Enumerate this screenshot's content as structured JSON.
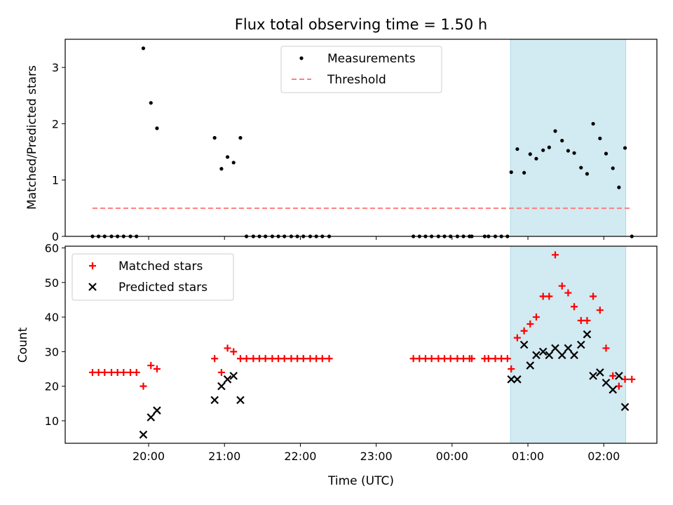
{
  "chart_data": {
    "title": "Flux total observing time = 1.50 h",
    "type": "scatter",
    "x_unit": "UTC time (hours; values past 24 are the next day)",
    "xlabel": "Time (UTC)",
    "xlim": [
      18.9,
      26.7
    ],
    "x_ticks": [
      {
        "value": 20,
        "label": "20:00"
      },
      {
        "value": 21,
        "label": "21:00"
      },
      {
        "value": 22,
        "label": "22:00"
      },
      {
        "value": 23,
        "label": "23:00"
      },
      {
        "value": 24,
        "label": "00:00"
      },
      {
        "value": 25,
        "label": "01:00"
      },
      {
        "value": 26,
        "label": "02:00"
      }
    ],
    "shaded_interval": [
      24.77,
      26.29
    ],
    "shaded_color": "#add8e6",
    "panels": [
      {
        "ylabel": "Matched/Predicted stars",
        "ylim": [
          0,
          3.5
        ],
        "y_ticks": [
          0,
          1,
          2,
          3
        ],
        "legend_position": "upper-center",
        "series": [
          {
            "name": "Measurements",
            "marker": "dot",
            "color": "#000000",
            "x": [
              19.26,
              19.34,
              19.42,
              19.51,
              19.59,
              19.67,
              19.76,
              19.84,
              19.93,
              20.03,
              20.11,
              20.87,
              20.96,
              21.04,
              21.12,
              21.21,
              21.29,
              21.38,
              21.46,
              21.54,
              21.63,
              21.71,
              21.79,
              21.88,
              21.96,
              22.04,
              22.13,
              22.21,
              22.29,
              22.38,
              23.49,
              23.57,
              23.65,
              23.73,
              23.82,
              23.9,
              23.98,
              24.07,
              24.15,
              24.23,
              24.26,
              24.43,
              24.48,
              24.57,
              24.65,
              24.73,
              24.78,
              24.86,
              24.95,
              25.03,
              25.11,
              25.2,
              25.28,
              25.36,
              25.45,
              25.53,
              25.61,
              25.7,
              25.78,
              25.86,
              25.95,
              26.03,
              26.12,
              26.2,
              26.28,
              26.37
            ],
            "y": [
              0,
              0,
              0,
              0,
              0,
              0,
              0,
              0,
              3.34,
              2.37,
              1.92,
              1.75,
              1.2,
              1.41,
              1.31,
              1.75,
              0,
              0,
              0,
              0,
              0,
              0,
              0,
              0,
              0,
              0,
              0,
              0,
              0,
              0,
              0,
              0,
              0,
              0,
              0,
              0,
              0,
              0,
              0,
              0,
              0,
              0,
              0,
              0,
              0,
              0,
              1.14,
              1.55,
              1.13,
              1.46,
              1.38,
              1.53,
              1.58,
              1.87,
              1.7,
              1.52,
              1.48,
              1.22,
              1.11,
              2.0,
              1.74,
              1.47,
              1.21,
              0.87,
              1.57,
              0
            ]
          },
          {
            "name": "Threshold",
            "marker": "dashed-line",
            "color": "#ff7f7f",
            "x": [
              19.26,
              26.37
            ],
            "y": [
              0.5,
              0.5
            ]
          }
        ]
      },
      {
        "ylabel": "Count",
        "ylim": [
          3.5,
          60.5
        ],
        "y_ticks": [
          10,
          20,
          30,
          40,
          50,
          60
        ],
        "legend_position": "upper-left",
        "series": [
          {
            "name": "Matched stars",
            "marker": "plus",
            "color": "#ff0000",
            "x": [
              19.26,
              19.34,
              19.42,
              19.51,
              19.59,
              19.67,
              19.76,
              19.84,
              19.93,
              20.03,
              20.11,
              20.87,
              20.96,
              21.04,
              21.12,
              21.21,
              21.29,
              21.38,
              21.46,
              21.54,
              21.63,
              21.71,
              21.79,
              21.88,
              21.96,
              22.04,
              22.13,
              22.21,
              22.29,
              22.38,
              23.49,
              23.57,
              23.65,
              23.73,
              23.82,
              23.9,
              23.98,
              24.07,
              24.15,
              24.23,
              24.26,
              24.43,
              24.48,
              24.57,
              24.65,
              24.73,
              24.78,
              24.86,
              24.95,
              25.03,
              25.11,
              25.2,
              25.28,
              25.36,
              25.45,
              25.53,
              25.61,
              25.7,
              25.78,
              25.86,
              25.95,
              26.03,
              26.12,
              26.2,
              26.28,
              26.37
            ],
            "y": [
              24,
              24,
              24,
              24,
              24,
              24,
              24,
              24,
              20,
              26,
              25,
              28,
              24,
              31,
              30,
              28,
              28,
              28,
              28,
              28,
              28,
              28,
              28,
              28,
              28,
              28,
              28,
              28,
              28,
              28,
              28,
              28,
              28,
              28,
              28,
              28,
              28,
              28,
              28,
              28,
              28,
              28,
              28,
              28,
              28,
              28,
              25,
              34,
              36,
              38,
              40,
              46,
              46,
              58,
              49,
              47,
              43,
              39,
              39,
              46,
              42,
              31,
              23,
              20,
              22,
              22
            ]
          },
          {
            "name": "Predicted stars",
            "marker": "x",
            "color": "#000000",
            "x": [
              19.93,
              20.03,
              20.11,
              20.87,
              20.96,
              21.04,
              21.12,
              21.21,
              24.78,
              24.86,
              24.95,
              25.03,
              25.11,
              25.2,
              25.28,
              25.36,
              25.45,
              25.53,
              25.61,
              25.7,
              25.78,
              25.86,
              25.95,
              26.03,
              26.12,
              26.2,
              26.28
            ],
            "y": [
              6,
              11,
              13,
              16,
              20,
              22,
              23,
              16,
              22,
              22,
              32,
              26,
              29,
              30,
              29,
              31,
              29,
              31,
              29,
              32,
              35,
              23,
              24,
              21,
              19,
              23,
              14
            ]
          }
        ]
      }
    ]
  }
}
